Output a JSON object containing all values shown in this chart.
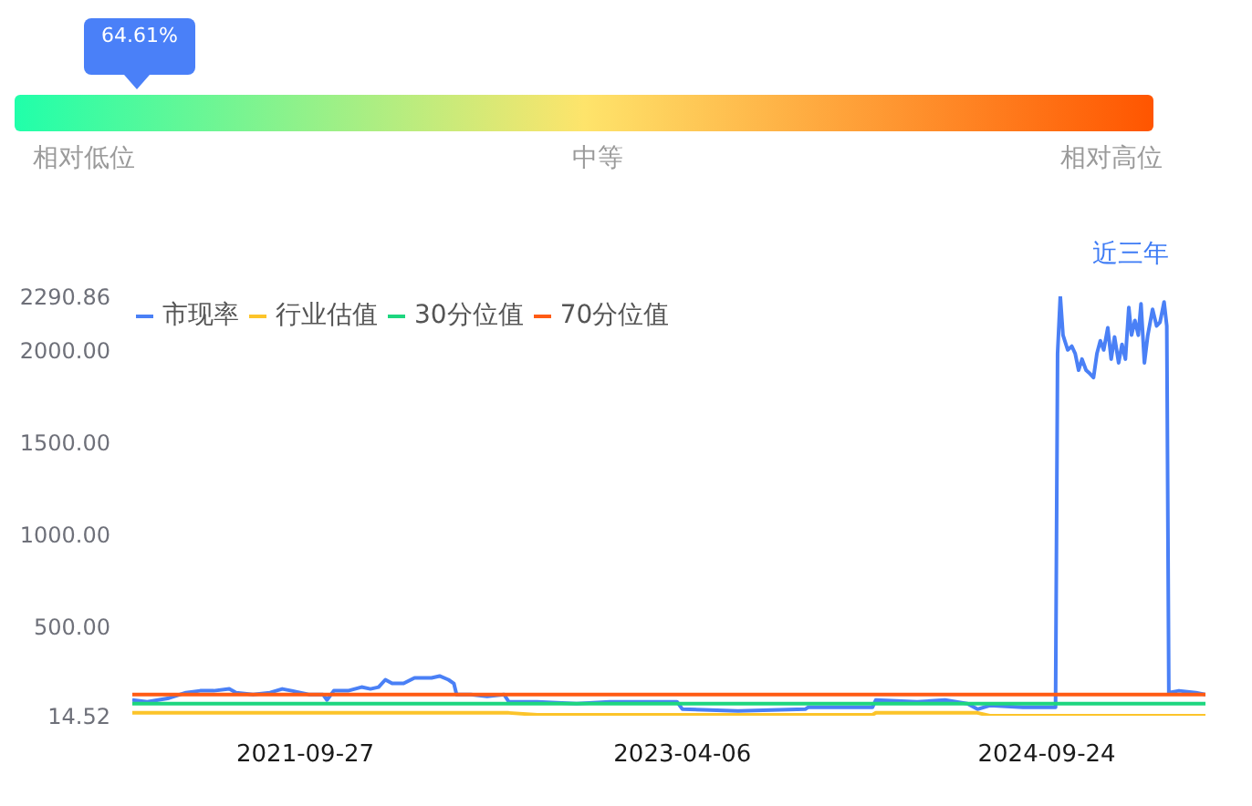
{
  "chart_data": {
    "type": "line",
    "xlim": [
      "2021-01-15",
      "2025-05-16"
    ],
    "xticks": [
      "2021-09-27",
      "2023-04-06",
      "2024-09-24"
    ],
    "ylim": [
      14.52,
      2290.86
    ],
    "yticks": [
      14.52,
      {
        "value": 500,
        "label": "500.00"
      },
      {
        "value": 1000,
        "label": "1000.00"
      },
      {
        "value": 1500,
        "label": "1500.00"
      },
      {
        "value": 2000,
        "label": "2000.00"
      },
      2290.86
    ],
    "legend": "top left",
    "annotations": [
      "64.61%",
      "相对低位",
      "中等",
      "相对高位",
      "近三年"
    ],
    "series": [
      {
        "name": "市现率",
        "color": "#4a80f6",
        "x": [
          "2021-01-15",
          "2021-02-06",
          "2021-02-22",
          "2021-03-10",
          "2021-04-04",
          "2021-04-25",
          "2021-05-15",
          "2021-06-07",
          "2021-06-17",
          "2021-07-12",
          "2021-08-06",
          "2021-08-24",
          "2021-09-07",
          "2021-10-02",
          "2021-10-23",
          "2021-10-29",
          "2021-11-08",
          "2021-11-29",
          "2021-12-19",
          "2022-01-01",
          "2022-01-13",
          "2022-01-23",
          "2022-02-02",
          "2022-02-19",
          "2022-03-07",
          "2022-03-20",
          "2022-04-01",
          "2022-04-13",
          "2022-04-26",
          "2022-05-04",
          "2022-05-08",
          "2022-05-29",
          "2022-06-22",
          "2022-07-17",
          "2022-07-24",
          "2022-09-04",
          "2022-11-01",
          "2022-12-20",
          "2023-02-16",
          "2023-03-29",
          "2023-04-06",
          "2023-06-27",
          "2023-10-04",
          "2023-10-08",
          "2024-01-11",
          "2024-01-16",
          "2024-03-17",
          "2024-04-27",
          "2024-05-30",
          "2024-06-14",
          "2024-07-02",
          "2024-08-20",
          "2024-10-02",
          "2024-10-07",
          "2024-10-10",
          "2024-10-14",
          "2024-10-18",
          "2024-10-25",
          "2024-10-31",
          "2024-11-05",
          "2024-11-10",
          "2024-11-15",
          "2024-11-21",
          "2024-11-27",
          "2024-12-02",
          "2024-12-07",
          "2024-12-12",
          "2024-12-17",
          "2024-12-23",
          "2024-12-28",
          "2025-01-02",
          "2025-01-08",
          "2025-01-13",
          "2025-01-18",
          "2025-01-23",
          "2025-01-27",
          "2025-02-01",
          "2025-02-06",
          "2025-02-10",
          "2025-02-15",
          "2025-02-20",
          "2025-02-27",
          "2025-03-05",
          "2025-03-10",
          "2025-03-16",
          "2025-03-20",
          "2025-03-23",
          "2025-04-07",
          "2025-05-02",
          "2025-05-16"
        ],
        "values": [
          100,
          90,
          100,
          110,
          140,
          150,
          150,
          160,
          140,
          130,
          140,
          160,
          150,
          130,
          130,
          100,
          150,
          150,
          170,
          160,
          170,
          210,
          190,
          190,
          220,
          220,
          220,
          230,
          210,
          190,
          130,
          130,
          120,
          130,
          90,
          90,
          80,
          90,
          90,
          90,
          50,
          40,
          50,
          60,
          60,
          100,
          90,
          100,
          80,
          50,
          70,
          60,
          60,
          60,
          1980,
          2290.86,
          2080,
          2000,
          2020,
          1980,
          1890,
          1950,
          1890,
          1870,
          1850,
          1980,
          2050,
          2000,
          2120,
          1950,
          2070,
          1930,
          2030,
          1950,
          2230,
          2080,
          2160,
          2080,
          2250,
          1930,
          2080,
          2220,
          2130,
          2150,
          2260,
          2130,
          140,
          150,
          140,
          130
        ]
      },
      {
        "name": "行业估值",
        "color": "#fcc42a",
        "x": [
          "2021-01-15",
          "2021-10-02",
          "2022-07-24",
          "2022-09-04",
          "2023-04-06",
          "2024-01-11",
          "2024-01-16",
          "2024-06-14",
          "2024-07-02",
          "2025-05-16"
        ],
        "values": [
          30,
          30,
          30,
          20,
          20,
          20,
          30,
          30,
          14.52,
          14.52
        ]
      },
      {
        "name": "30分位值",
        "color": "#1ed67f",
        "x": [
          "2021-01-15",
          "2025-05-16"
        ],
        "values": [
          80,
          80
        ]
      },
      {
        "name": "70分位值",
        "color": "#ff5b14",
        "x": [
          "2021-01-15",
          "2025-05-16"
        ],
        "values": [
          130,
          130
        ]
      }
    ]
  }
}
